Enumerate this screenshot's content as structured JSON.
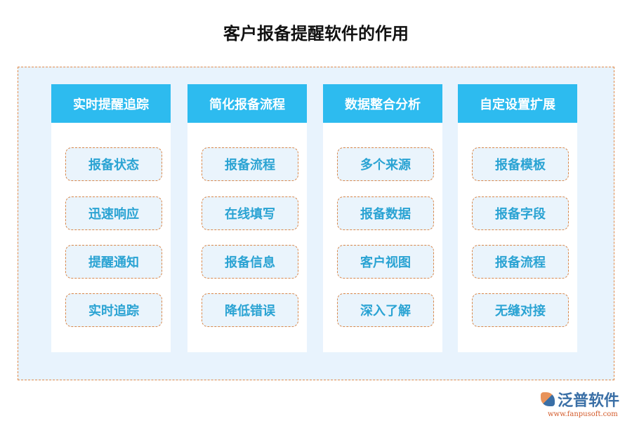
{
  "title": "客户报备提醒软件的作用",
  "columns": [
    {
      "header": "实时提醒追踪",
      "items": [
        "报备状态",
        "迅速响应",
        "提醒通知",
        "实时追踪"
      ]
    },
    {
      "header": "简化报备流程",
      "items": [
        "报备流程",
        "在线填写",
        "报备信息",
        "降低错误"
      ]
    },
    {
      "header": "数据整合分析",
      "items": [
        "多个来源",
        "报备数据",
        "客户视图",
        "深入了解"
      ]
    },
    {
      "header": "自定设置扩展",
      "items": [
        "报备模板",
        "报备字段",
        "报备流程",
        "无缝对接"
      ]
    }
  ],
  "logo": {
    "name": "泛普软件",
    "url": "www.fanpusoft.com"
  },
  "colors": {
    "header": "#2dbbef",
    "border": "#d9874a",
    "background": "#e8f3fd"
  }
}
